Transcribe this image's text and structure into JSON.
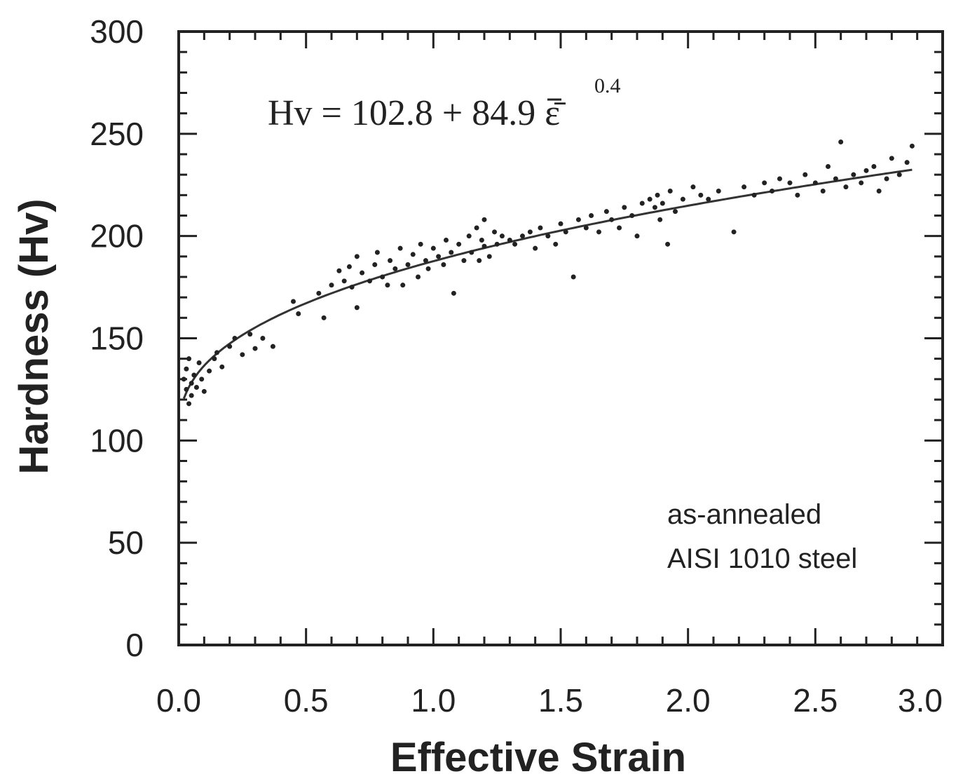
{
  "chart_data": {
    "type": "scatter",
    "xlabel": "Effective Strain",
    "ylabel": "Hardness (Hv)",
    "xlim": [
      0.0,
      3.0
    ],
    "ylim": [
      0,
      300
    ],
    "x_ticks": [
      "0.0",
      "0.5",
      "1.0",
      "1.5",
      "2.0",
      "2.5",
      "3.0"
    ],
    "y_ticks": [
      "0",
      "50",
      "100",
      "150",
      "200",
      "250",
      "300"
    ],
    "grid": false,
    "equation": {
      "main": "Hv = 102.8 + 84.9 ε̄",
      "exponent": "0.4"
    },
    "annotation": [
      "as-annealed",
      "AISI 1010 steel"
    ],
    "fit": {
      "a": 102.8,
      "b": 84.9,
      "n": 0.4
    },
    "points": [
      [
        0.02,
        130
      ],
      [
        0.03,
        125
      ],
      [
        0.03,
        135
      ],
      [
        0.04,
        118
      ],
      [
        0.04,
        140
      ],
      [
        0.05,
        128
      ],
      [
        0.05,
        122
      ],
      [
        0.06,
        132
      ],
      [
        0.07,
        126
      ],
      [
        0.08,
        138
      ],
      [
        0.09,
        130
      ],
      [
        0.1,
        124
      ],
      [
        0.12,
        134
      ],
      [
        0.14,
        140
      ],
      [
        0.15,
        143
      ],
      [
        0.17,
        136
      ],
      [
        0.2,
        146
      ],
      [
        0.22,
        150
      ],
      [
        0.25,
        142
      ],
      [
        0.28,
        152
      ],
      [
        0.3,
        145
      ],
      [
        0.33,
        150
      ],
      [
        0.37,
        146
      ],
      [
        0.45,
        168
      ],
      [
        0.47,
        162
      ],
      [
        0.55,
        172
      ],
      [
        0.57,
        160
      ],
      [
        0.6,
        176
      ],
      [
        0.63,
        183
      ],
      [
        0.65,
        178
      ],
      [
        0.67,
        185
      ],
      [
        0.68,
        175
      ],
      [
        0.7,
        165
      ],
      [
        0.7,
        190
      ],
      [
        0.72,
        182
      ],
      [
        0.75,
        178
      ],
      [
        0.77,
        186
      ],
      [
        0.78,
        192
      ],
      [
        0.8,
        180
      ],
      [
        0.82,
        176
      ],
      [
        0.83,
        188
      ],
      [
        0.85,
        184
      ],
      [
        0.87,
        194
      ],
      [
        0.88,
        176
      ],
      [
        0.9,
        186
      ],
      [
        0.92,
        191
      ],
      [
        0.94,
        180
      ],
      [
        0.95,
        196
      ],
      [
        0.97,
        188
      ],
      [
        0.98,
        184
      ],
      [
        1.0,
        194
      ],
      [
        1.02,
        190
      ],
      [
        1.04,
        186
      ],
      [
        1.05,
        198
      ],
      [
        1.07,
        192
      ],
      [
        1.08,
        172
      ],
      [
        1.1,
        196
      ],
      [
        1.12,
        188
      ],
      [
        1.14,
        200
      ],
      [
        1.15,
        192
      ],
      [
        1.17,
        204
      ],
      [
        1.18,
        188
      ],
      [
        1.19,
        198
      ],
      [
        1.2,
        208
      ],
      [
        1.2,
        195
      ],
      [
        1.22,
        190
      ],
      [
        1.24,
        202
      ],
      [
        1.25,
        196
      ],
      [
        1.27,
        200
      ],
      [
        1.3,
        198
      ],
      [
        1.32,
        196
      ],
      [
        1.35,
        200
      ],
      [
        1.38,
        202
      ],
      [
        1.4,
        194
      ],
      [
        1.42,
        204
      ],
      [
        1.45,
        200
      ],
      [
        1.48,
        196
      ],
      [
        1.5,
        206
      ],
      [
        1.52,
        202
      ],
      [
        1.55,
        180
      ],
      [
        1.57,
        208
      ],
      [
        1.6,
        204
      ],
      [
        1.62,
        210
      ],
      [
        1.65,
        202
      ],
      [
        1.68,
        212
      ],
      [
        1.7,
        208
      ],
      [
        1.73,
        204
      ],
      [
        1.75,
        214
      ],
      [
        1.78,
        210
      ],
      [
        1.8,
        200
      ],
      [
        1.82,
        216
      ],
      [
        1.85,
        218
      ],
      [
        1.87,
        214
      ],
      [
        1.88,
        220
      ],
      [
        1.89,
        208
      ],
      [
        1.9,
        216
      ],
      [
        1.92,
        196
      ],
      [
        1.93,
        222
      ],
      [
        1.95,
        212
      ],
      [
        1.98,
        218
      ],
      [
        2.02,
        224
      ],
      [
        2.05,
        220
      ],
      [
        2.08,
        218
      ],
      [
        2.12,
        222
      ],
      [
        2.18,
        202
      ],
      [
        2.22,
        224
      ],
      [
        2.26,
        220
      ],
      [
        2.3,
        226
      ],
      [
        2.33,
        222
      ],
      [
        2.36,
        228
      ],
      [
        2.4,
        226
      ],
      [
        2.43,
        220
      ],
      [
        2.46,
        230
      ],
      [
        2.5,
        226
      ],
      [
        2.53,
        222
      ],
      [
        2.55,
        234
      ],
      [
        2.58,
        228
      ],
      [
        2.6,
        246
      ],
      [
        2.62,
        224
      ],
      [
        2.65,
        230
      ],
      [
        2.68,
        226
      ],
      [
        2.7,
        232
      ],
      [
        2.73,
        234
      ],
      [
        2.75,
        222
      ],
      [
        2.78,
        228
      ],
      [
        2.8,
        238
      ],
      [
        2.83,
        230
      ],
      [
        2.86,
        236
      ],
      [
        2.88,
        244
      ]
    ]
  }
}
